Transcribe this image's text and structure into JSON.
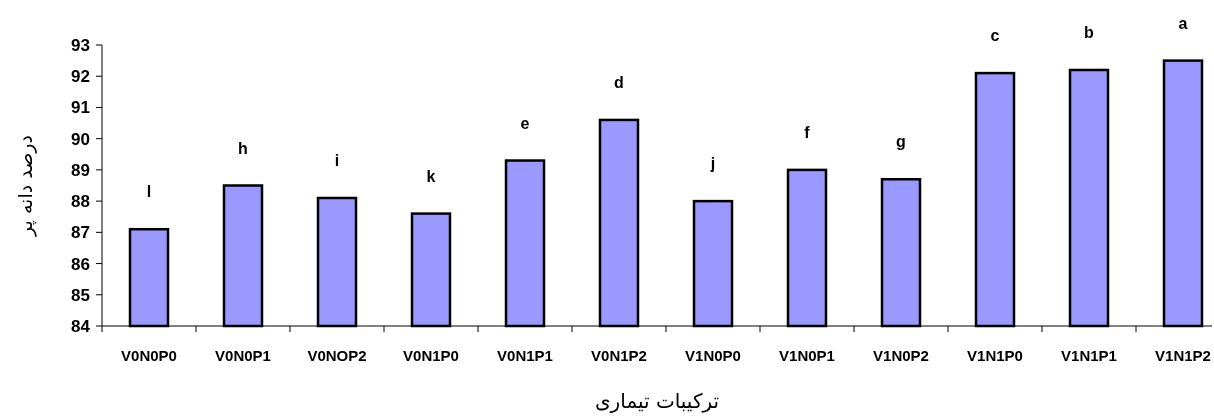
{
  "chart_data": {
    "type": "bar",
    "xlabel": "ترکیبات تیماری",
    "ylabel": "درصد دانه پر",
    "categories": [
      "V0N0P0",
      "V0N0P1",
      "V0NOP2",
      "V0N1P0",
      "V0N1P1",
      "V0N1P2",
      "V1N0P0",
      "V1N0P1",
      "V1N0P2",
      "V1N1P0",
      "V1N1P1",
      "V1N1P2"
    ],
    "values": [
      87.1,
      88.5,
      88.1,
      87.6,
      89.3,
      90.6,
      88.0,
      89.0,
      88.7,
      92.1,
      92.2,
      92.5
    ],
    "color": "#9999ff",
    "ylim": [
      84,
      93
    ],
    "yticks": [
      84,
      85,
      86,
      87,
      88,
      89,
      90,
      91,
      92,
      93
    ],
    "grid": false,
    "annotations": [
      {
        "text": "l",
        "x": "V0N0P0",
        "y": 87.1
      },
      {
        "text": "h",
        "x": "V0N0P1",
        "y": 88.5
      },
      {
        "text": "i",
        "x": "V0NOP2",
        "y": 88.1
      },
      {
        "text": "k",
        "x": "V0N1P0",
        "y": 87.6
      },
      {
        "text": "e",
        "x": "V0N1P1",
        "y": 89.3
      },
      {
        "text": "d",
        "x": "V0N1P2",
        "y": 90.6
      },
      {
        "text": "j",
        "x": "V1N0P0",
        "y": 88.0
      },
      {
        "text": "f",
        "x": "V1N0P1",
        "y": 89.0
      },
      {
        "text": "g",
        "x": "V1N0P2",
        "y": 88.7
      },
      {
        "text": "c",
        "x": "V1N1P0",
        "y": 92.1
      },
      {
        "text": "b",
        "x": "V1N1P1",
        "y": 92.2
      },
      {
        "text": "a",
        "x": "V1N1P2",
        "y": 92.5
      }
    ]
  }
}
